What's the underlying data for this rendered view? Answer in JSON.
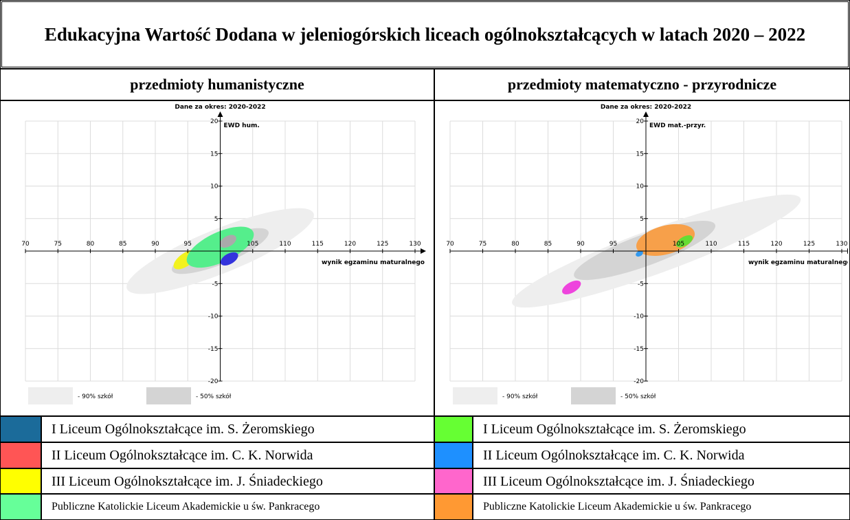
{
  "title": "Edukacyjna Wartość Dodana w jeleniogórskich liceach ogólnokształcących w latach 2020 – 2022",
  "columns": [
    "przedmioty humanistyczne",
    "przedmioty matematyczno - przyrodnicze"
  ],
  "chart_data": [
    {
      "type": "ellipse",
      "title": "Dane za okres: 2020-2022",
      "y_label": "EWD hum.",
      "x_label": "wynik egzaminu maturalnego",
      "xlim": [
        70,
        130
      ],
      "ylim": [
        -20,
        20
      ],
      "origin": [
        100,
        0
      ],
      "xticks": [
        70,
        75,
        80,
        85,
        90,
        95,
        105,
        110,
        115,
        120,
        125,
        130
      ],
      "yticks": [
        -20,
        -15,
        -10,
        -5,
        5,
        10,
        15,
        20
      ],
      "grid": true,
      "bands": [
        {
          "name": "- 90% szkół",
          "color": "#eeeeee",
          "x": 100,
          "y": 0,
          "rx": 15.5,
          "ry": 3.4,
          "angle": 22
        },
        {
          "name": "- 50% szkół",
          "color": "#d4d4d4",
          "x": 100,
          "y": 0,
          "rx": 8,
          "ry": 2,
          "angle": 22
        }
      ],
      "ellipses": [
        {
          "color": "#f2f21e",
          "x": 94.7,
          "y": -1.3,
          "rx": 2.2,
          "ry": 1,
          "angle": 35
        },
        {
          "color": "#55ee8c",
          "x": 100,
          "y": 0.6,
          "rx": 5.6,
          "ry": 2.3,
          "angle": 25
        },
        {
          "color": "#aaaaaa",
          "x": 101.2,
          "y": 1.5,
          "rx": 1.4,
          "ry": 0.8,
          "angle": 30
        },
        {
          "color": "#3434dc",
          "x": 101.4,
          "y": -1.2,
          "rx": 1.5,
          "ry": 0.8,
          "angle": 30
        }
      ],
      "series": [
        {
          "name": "I Liceum Ogólnokształcące im. S. Żeromskiego",
          "color": "#1b6b9a"
        },
        {
          "name": "II Liceum Ogólnokształcące im. C. K. Norwida",
          "color": "#ff5555"
        },
        {
          "name": "III Liceum Ogólnokształcące im. J. Śniadeckiego",
          "color": "#ffff00"
        },
        {
          "name": "Publiczne Katolickie Liceum Akademickie u św. Pankracego",
          "color": "#66ff99"
        }
      ]
    },
    {
      "type": "ellipse",
      "title": "Dane za okres: 2020-2022",
      "y_label": "EWD mat.-przyr.",
      "x_label": "wynik egzaminu maturalnego",
      "xlim": [
        70,
        130
      ],
      "ylim": [
        -20,
        20
      ],
      "origin": [
        100,
        0
      ],
      "xticks": [
        70,
        75,
        80,
        85,
        90,
        95,
        105,
        110,
        115,
        120,
        125,
        130
      ],
      "yticks": [
        -20,
        -15,
        -10,
        -5,
        5,
        10,
        15,
        20
      ],
      "grid": true,
      "bands": [
        {
          "name": "- 90% szkół",
          "color": "#eeeeee",
          "x": 101.6,
          "y": 0,
          "rx": 23.5,
          "ry": 3.4,
          "angle": 20
        },
        {
          "name": "- 50% szkół",
          "color": "#d4d4d4",
          "x": 99.8,
          "y": 0.1,
          "rx": 11.5,
          "ry": 2.4,
          "angle": 20
        }
      ],
      "ellipses": [
        {
          "color": "#f7a04a",
          "x": 103,
          "y": 1.7,
          "rx": 4.6,
          "ry": 2.2,
          "angle": 15
        },
        {
          "color": "#66dd33",
          "x": 105.9,
          "y": 1.5,
          "rx": 1.4,
          "ry": 0.7,
          "angle": 30
        },
        {
          "color": "#3399ee",
          "x": 99,
          "y": -0.4,
          "rx": 0.6,
          "ry": 0.4,
          "angle": 30
        },
        {
          "color": "#ee44dd",
          "x": 88.6,
          "y": -5.6,
          "rx": 1.6,
          "ry": 0.8,
          "angle": 30
        }
      ],
      "series": [
        {
          "name": "I Liceum Ogólnokształcące im. S. Żeromskiego",
          "color": "#66ff33"
        },
        {
          "name": "II Liceum Ogólnokształcące im. C. K. Norwida",
          "color": "#1e90ff"
        },
        {
          "name": "III Liceum Ogólnokształcące im. J. Śniadeckiego",
          "color": "#ff66cc"
        },
        {
          "name": "Publiczne Katolickie Liceum Akademickie u św. Pankracego",
          "color": "#ff9933"
        }
      ]
    }
  ]
}
